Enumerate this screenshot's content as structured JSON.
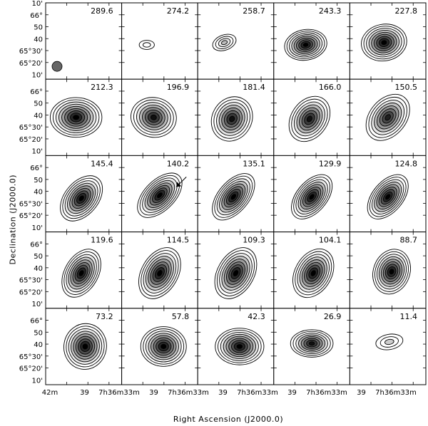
{
  "figure": {
    "x_axis_title": "Right Ascension (J2000.0)",
    "y_axis_title": "Declination (J2000.0)",
    "beam_color": "#666666",
    "grid": {
      "rows": 5,
      "cols": 5
    },
    "panels": [
      {
        "velocity": "289.6",
        "source": null,
        "beam": true
      },
      {
        "velocity": "274.2",
        "source": {
          "cx": 0.33,
          "cy": 0.55,
          "rx": 0.1,
          "ry": 0.06,
          "angle": 0,
          "levels": 2,
          "peak": 0.15
        }
      },
      {
        "velocity": "258.7",
        "source": {
          "cx": 0.35,
          "cy": 0.52,
          "rx": 0.16,
          "ry": 0.1,
          "angle": -20,
          "levels": 4,
          "peak": 0.4
        }
      },
      {
        "velocity": "243.3",
        "source": {
          "cx": 0.42,
          "cy": 0.55,
          "rx": 0.28,
          "ry": 0.2,
          "angle": -10,
          "levels": 9,
          "peak": 1.0
        }
      },
      {
        "velocity": "227.8",
        "source": {
          "cx": 0.45,
          "cy": 0.52,
          "rx": 0.3,
          "ry": 0.24,
          "angle": -10,
          "levels": 9,
          "peak": 1.0
        }
      },
      {
        "velocity": "212.3",
        "source": {
          "cx": 0.4,
          "cy": 0.5,
          "rx": 0.34,
          "ry": 0.26,
          "angle": 0,
          "levels": 9,
          "peak": 1.0
        }
      },
      {
        "velocity": "196.9",
        "source": {
          "cx": 0.42,
          "cy": 0.5,
          "rx": 0.3,
          "ry": 0.26,
          "angle": 10,
          "levels": 8,
          "peak": 0.95
        }
      },
      {
        "velocity": "181.4",
        "source": {
          "cx": 0.45,
          "cy": 0.52,
          "rx": 0.26,
          "ry": 0.3,
          "angle": 30,
          "levels": 8,
          "peak": 0.95
        }
      },
      {
        "velocity": "166.0",
        "source": {
          "cx": 0.47,
          "cy": 0.52,
          "rx": 0.24,
          "ry": 0.32,
          "angle": 35,
          "levels": 8,
          "peak": 0.95
        }
      },
      {
        "velocity": "150.5",
        "source": {
          "cx": 0.5,
          "cy": 0.5,
          "rx": 0.24,
          "ry": 0.34,
          "angle": 40,
          "levels": 8,
          "peak": 0.9
        }
      },
      {
        "velocity": "145.4",
        "source": {
          "cx": 0.47,
          "cy": 0.56,
          "rx": 0.22,
          "ry": 0.34,
          "angle": 40,
          "levels": 9,
          "peak": 1.0
        }
      },
      {
        "velocity": "140.2",
        "source": {
          "cx": 0.5,
          "cy": 0.52,
          "rx": 0.2,
          "ry": 0.36,
          "angle": 45,
          "levels": 9,
          "peak": 1.0
        },
        "arrow": true
      },
      {
        "velocity": "135.1",
        "source": {
          "cx": 0.47,
          "cy": 0.54,
          "rx": 0.2,
          "ry": 0.36,
          "angle": 40,
          "levels": 9,
          "peak": 1.0
        }
      },
      {
        "velocity": "129.9",
        "source": {
          "cx": 0.5,
          "cy": 0.54,
          "rx": 0.2,
          "ry": 0.34,
          "angle": 40,
          "levels": 9,
          "peak": 1.0
        }
      },
      {
        "velocity": "124.8",
        "source": {
          "cx": 0.5,
          "cy": 0.54,
          "rx": 0.2,
          "ry": 0.34,
          "angle": 40,
          "levels": 9,
          "peak": 1.0
        }
      },
      {
        "velocity": "119.6",
        "source": {
          "cx": 0.47,
          "cy": 0.54,
          "rx": 0.22,
          "ry": 0.34,
          "angle": 30,
          "levels": 9,
          "peak": 1.0
        }
      },
      {
        "velocity": "114.5",
        "source": {
          "cx": 0.5,
          "cy": 0.54,
          "rx": 0.24,
          "ry": 0.36,
          "angle": 30,
          "levels": 9,
          "peak": 1.0
        }
      },
      {
        "velocity": "109.3",
        "source": {
          "cx": 0.5,
          "cy": 0.54,
          "rx": 0.24,
          "ry": 0.36,
          "angle": 30,
          "levels": 9,
          "peak": 1.0
        }
      },
      {
        "velocity": "104.1",
        "source": {
          "cx": 0.52,
          "cy": 0.54,
          "rx": 0.24,
          "ry": 0.34,
          "angle": 30,
          "levels": 9,
          "peak": 1.0
        }
      },
      {
        "velocity": "88.7",
        "source": {
          "cx": 0.55,
          "cy": 0.52,
          "rx": 0.24,
          "ry": 0.3,
          "angle": 20,
          "levels": 9,
          "peak": 1.0
        }
      },
      {
        "velocity": "73.2",
        "source": {
          "cx": 0.52,
          "cy": 0.5,
          "rx": 0.28,
          "ry": 0.3,
          "angle": 10,
          "levels": 9,
          "peak": 1.0
        }
      },
      {
        "velocity": "57.8",
        "source": {
          "cx": 0.55,
          "cy": 0.5,
          "rx": 0.3,
          "ry": 0.26,
          "angle": 0,
          "levels": 9,
          "peak": 1.0
        }
      },
      {
        "velocity": "42.3",
        "source": {
          "cx": 0.55,
          "cy": 0.5,
          "rx": 0.32,
          "ry": 0.24,
          "angle": 0,
          "levels": 9,
          "peak": 1.0
        }
      },
      {
        "velocity": "26.9",
        "source": {
          "cx": 0.5,
          "cy": 0.46,
          "rx": 0.28,
          "ry": 0.18,
          "angle": 0,
          "levels": 8,
          "peak": 0.95
        }
      },
      {
        "velocity": "11.4",
        "source": {
          "cx": 0.52,
          "cy": 0.44,
          "rx": 0.18,
          "ry": 0.1,
          "angle": -10,
          "levels": 3,
          "peak": 0.35
        }
      }
    ],
    "y_ticks_top": [
      "10'",
      "66°",
      "50",
      "40",
      "65°30'",
      "65°20'",
      "10'"
    ],
    "y_ticks_row": [
      "10",
      "66°",
      "50",
      "40",
      "65°30'",
      "65°20'",
      "10'"
    ],
    "x_ticks": [
      "42m",
      "39",
      "7h36m33m",
      "39",
      "7h36m33m",
      "39",
      "7h36m33m",
      "39",
      "7h36m33m",
      "39",
      "7h36m33m"
    ]
  }
}
